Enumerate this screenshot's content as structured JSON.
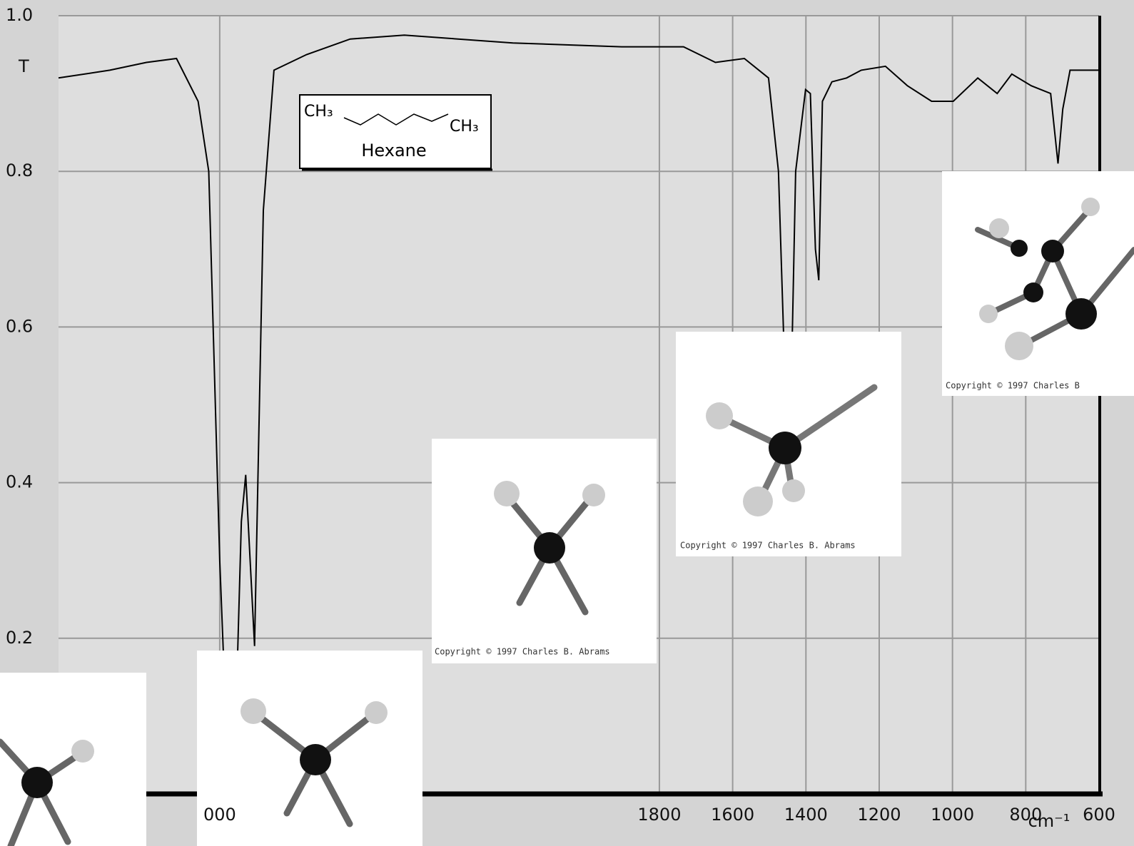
{
  "chart_data": {
    "type": "line",
    "y_label": "T",
    "x_label": "cm⁻¹",
    "annotation": {
      "left_group": "CH₃",
      "right_group": "CH₃",
      "name": "Hexane"
    },
    "copyrights": [
      "Copyright © 1997 Charles B. Abrams",
      "Copyright © 1997 Charles B. Abrams",
      "Copyright © 1997 Charles B"
    ],
    "xlim": [
      3440,
      600
    ],
    "ylim": [
      0,
      1
    ],
    "xticks": [
      {
        "value": 3000,
        "label": "000"
      },
      1800,
      1600,
      1400,
      1200,
      1000,
      800,
      600
    ],
    "yticks": [
      0.2,
      0.4,
      0.6,
      0.8,
      {
        "value": 1,
        "label": "1.0"
      }
    ],
    "grid": true,
    "series": [
      {
        "name": "Hexane",
        "color": "#000000",
        "x": [
          3440,
          3300,
          3200,
          3118,
          3059,
          3030,
          3015,
          3000,
          2985,
          2970,
          2956,
          2941,
          2929,
          2917,
          2905,
          2896,
          2881,
          2852,
          2763,
          2644,
          2496,
          2200,
          1903,
          1734,
          1647,
          1568,
          1502,
          1475,
          1455,
          1448,
          1439,
          1428,
          1401,
          1388,
          1374,
          1365,
          1355,
          1329,
          1289,
          1249,
          1183,
          1123,
          1057,
          998,
          931,
          878,
          838,
          785,
          732,
          712,
          699,
          679,
          600
        ],
        "values": [
          0.92,
          0.93,
          0.94,
          0.945,
          0.89,
          0.8,
          0.55,
          0.3,
          0.12,
          0.04,
          0.1,
          0.35,
          0.41,
          0.3,
          0.19,
          0.4,
          0.75,
          0.93,
          0.95,
          0.97,
          0.975,
          0.965,
          0.96,
          0.96,
          0.94,
          0.945,
          0.92,
          0.8,
          0.5,
          0.47,
          0.55,
          0.8,
          0.905,
          0.9,
          0.7,
          0.66,
          0.89,
          0.915,
          0.92,
          0.93,
          0.935,
          0.91,
          0.89,
          0.89,
          0.92,
          0.9,
          0.925,
          0.91,
          0.9,
          0.81,
          0.88,
          0.93,
          0.93
        ]
      }
    ]
  }
}
